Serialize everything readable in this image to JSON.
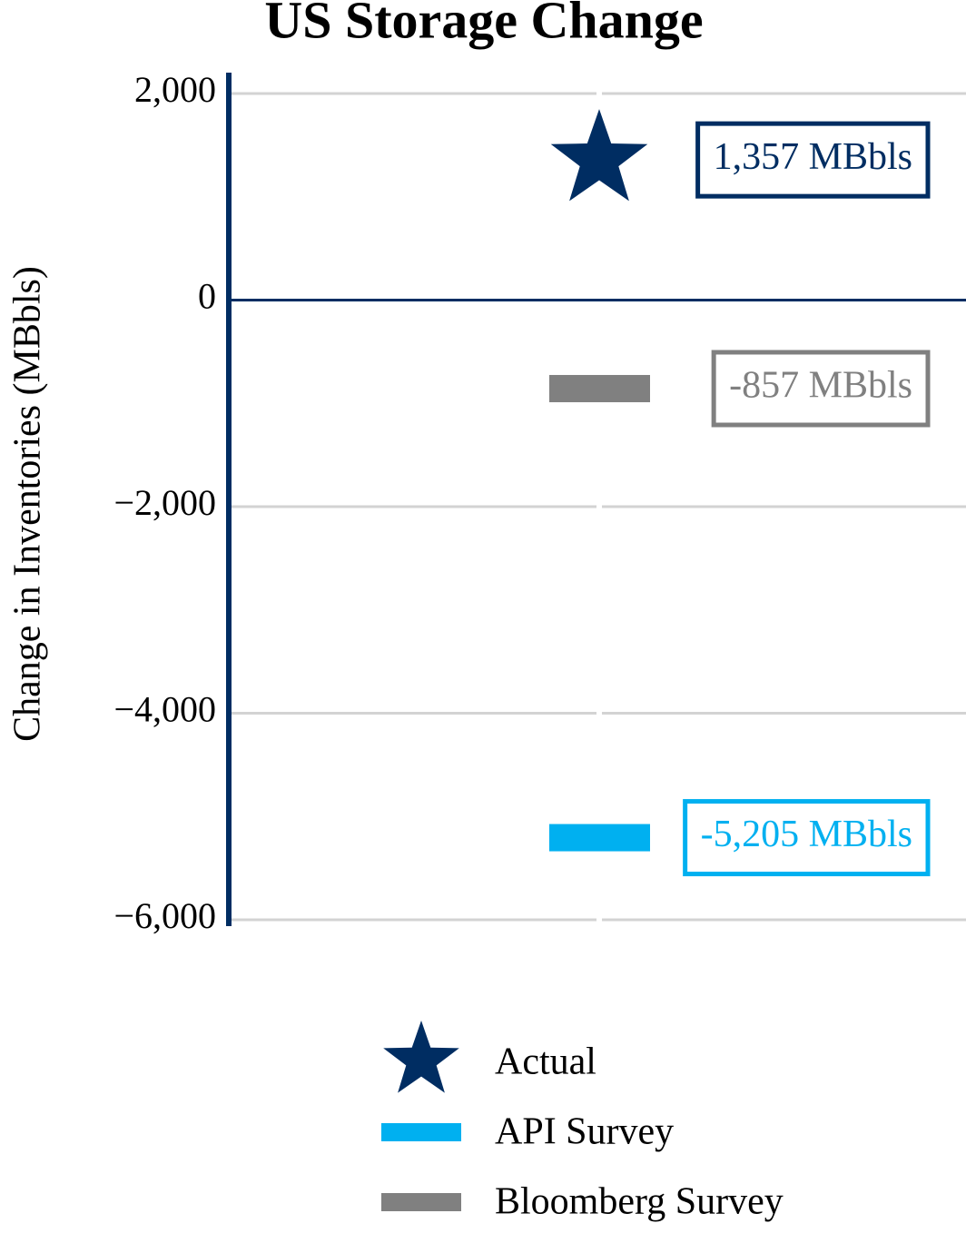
{
  "chart_data": {
    "type": "bar",
    "title": "US Storage Change",
    "y_label": "Change in Inventories (MBbls)",
    "ylim": [
      -6000,
      2000
    ],
    "yticks": [
      {
        "value": -6000,
        "label": "−6,000"
      },
      {
        "value": -4000,
        "label": "−4,000"
      },
      {
        "value": -2000,
        "label": "−2,000"
      },
      0,
      {
        "value": 2000,
        "label": "2,000"
      }
    ],
    "grid": true,
    "series": [
      {
        "name": "Actual",
        "color": "#002d62",
        "marker": "star",
        "values": [
          1357
        ],
        "value_labels": [
          "1,357 MBbls"
        ]
      },
      {
        "name": "API Survey",
        "color": "#00b0f0",
        "marker": "bar",
        "values": [
          -5205
        ],
        "value_labels": [
          "-5,205 MBbls"
        ]
      },
      {
        "name": "Bloomberg Survey",
        "color": "#808080",
        "marker": "bar",
        "values": [
          -857
        ],
        "value_labels": [
          "-857 MBbls"
        ]
      }
    ]
  }
}
